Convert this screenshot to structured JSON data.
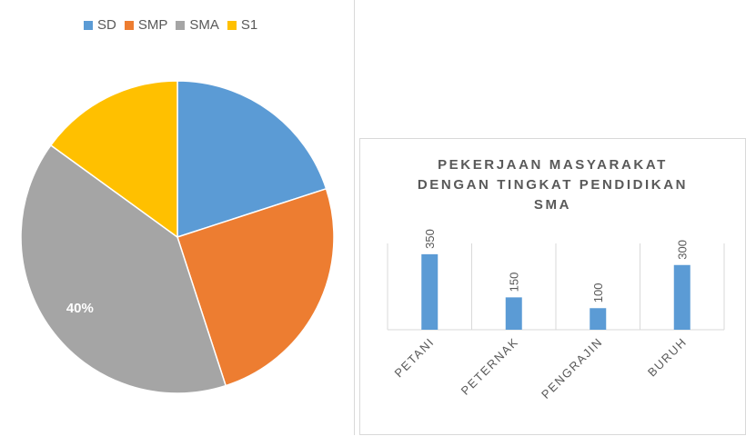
{
  "chart_data": [
    {
      "type": "pie",
      "legend_position": "top",
      "categories": [
        "SD",
        "SMP",
        "SMA",
        "S1"
      ],
      "values": [
        20,
        25,
        40,
        15
      ],
      "colors": [
        "#5b9bd5",
        "#ed7d31",
        "#a5a5a5",
        "#ffc000"
      ],
      "data_labels": [
        "",
        "",
        "40%",
        ""
      ]
    },
    {
      "type": "bar",
      "title_lines": [
        "PEKERJAAN MASYARAKAT",
        "DENGAN TINGKAT PENDIDIKAN",
        "SMA"
      ],
      "categories": [
        "PETANI",
        "PETERNAK",
        "PENGRAJIN",
        "BURUH"
      ],
      "values": [
        350,
        150,
        100,
        300
      ],
      "data_labels": [
        "350",
        "150",
        "100",
        "300"
      ],
      "color": "#5b9bd5",
      "ylim": [
        0,
        400
      ],
      "grid": true
    }
  ]
}
